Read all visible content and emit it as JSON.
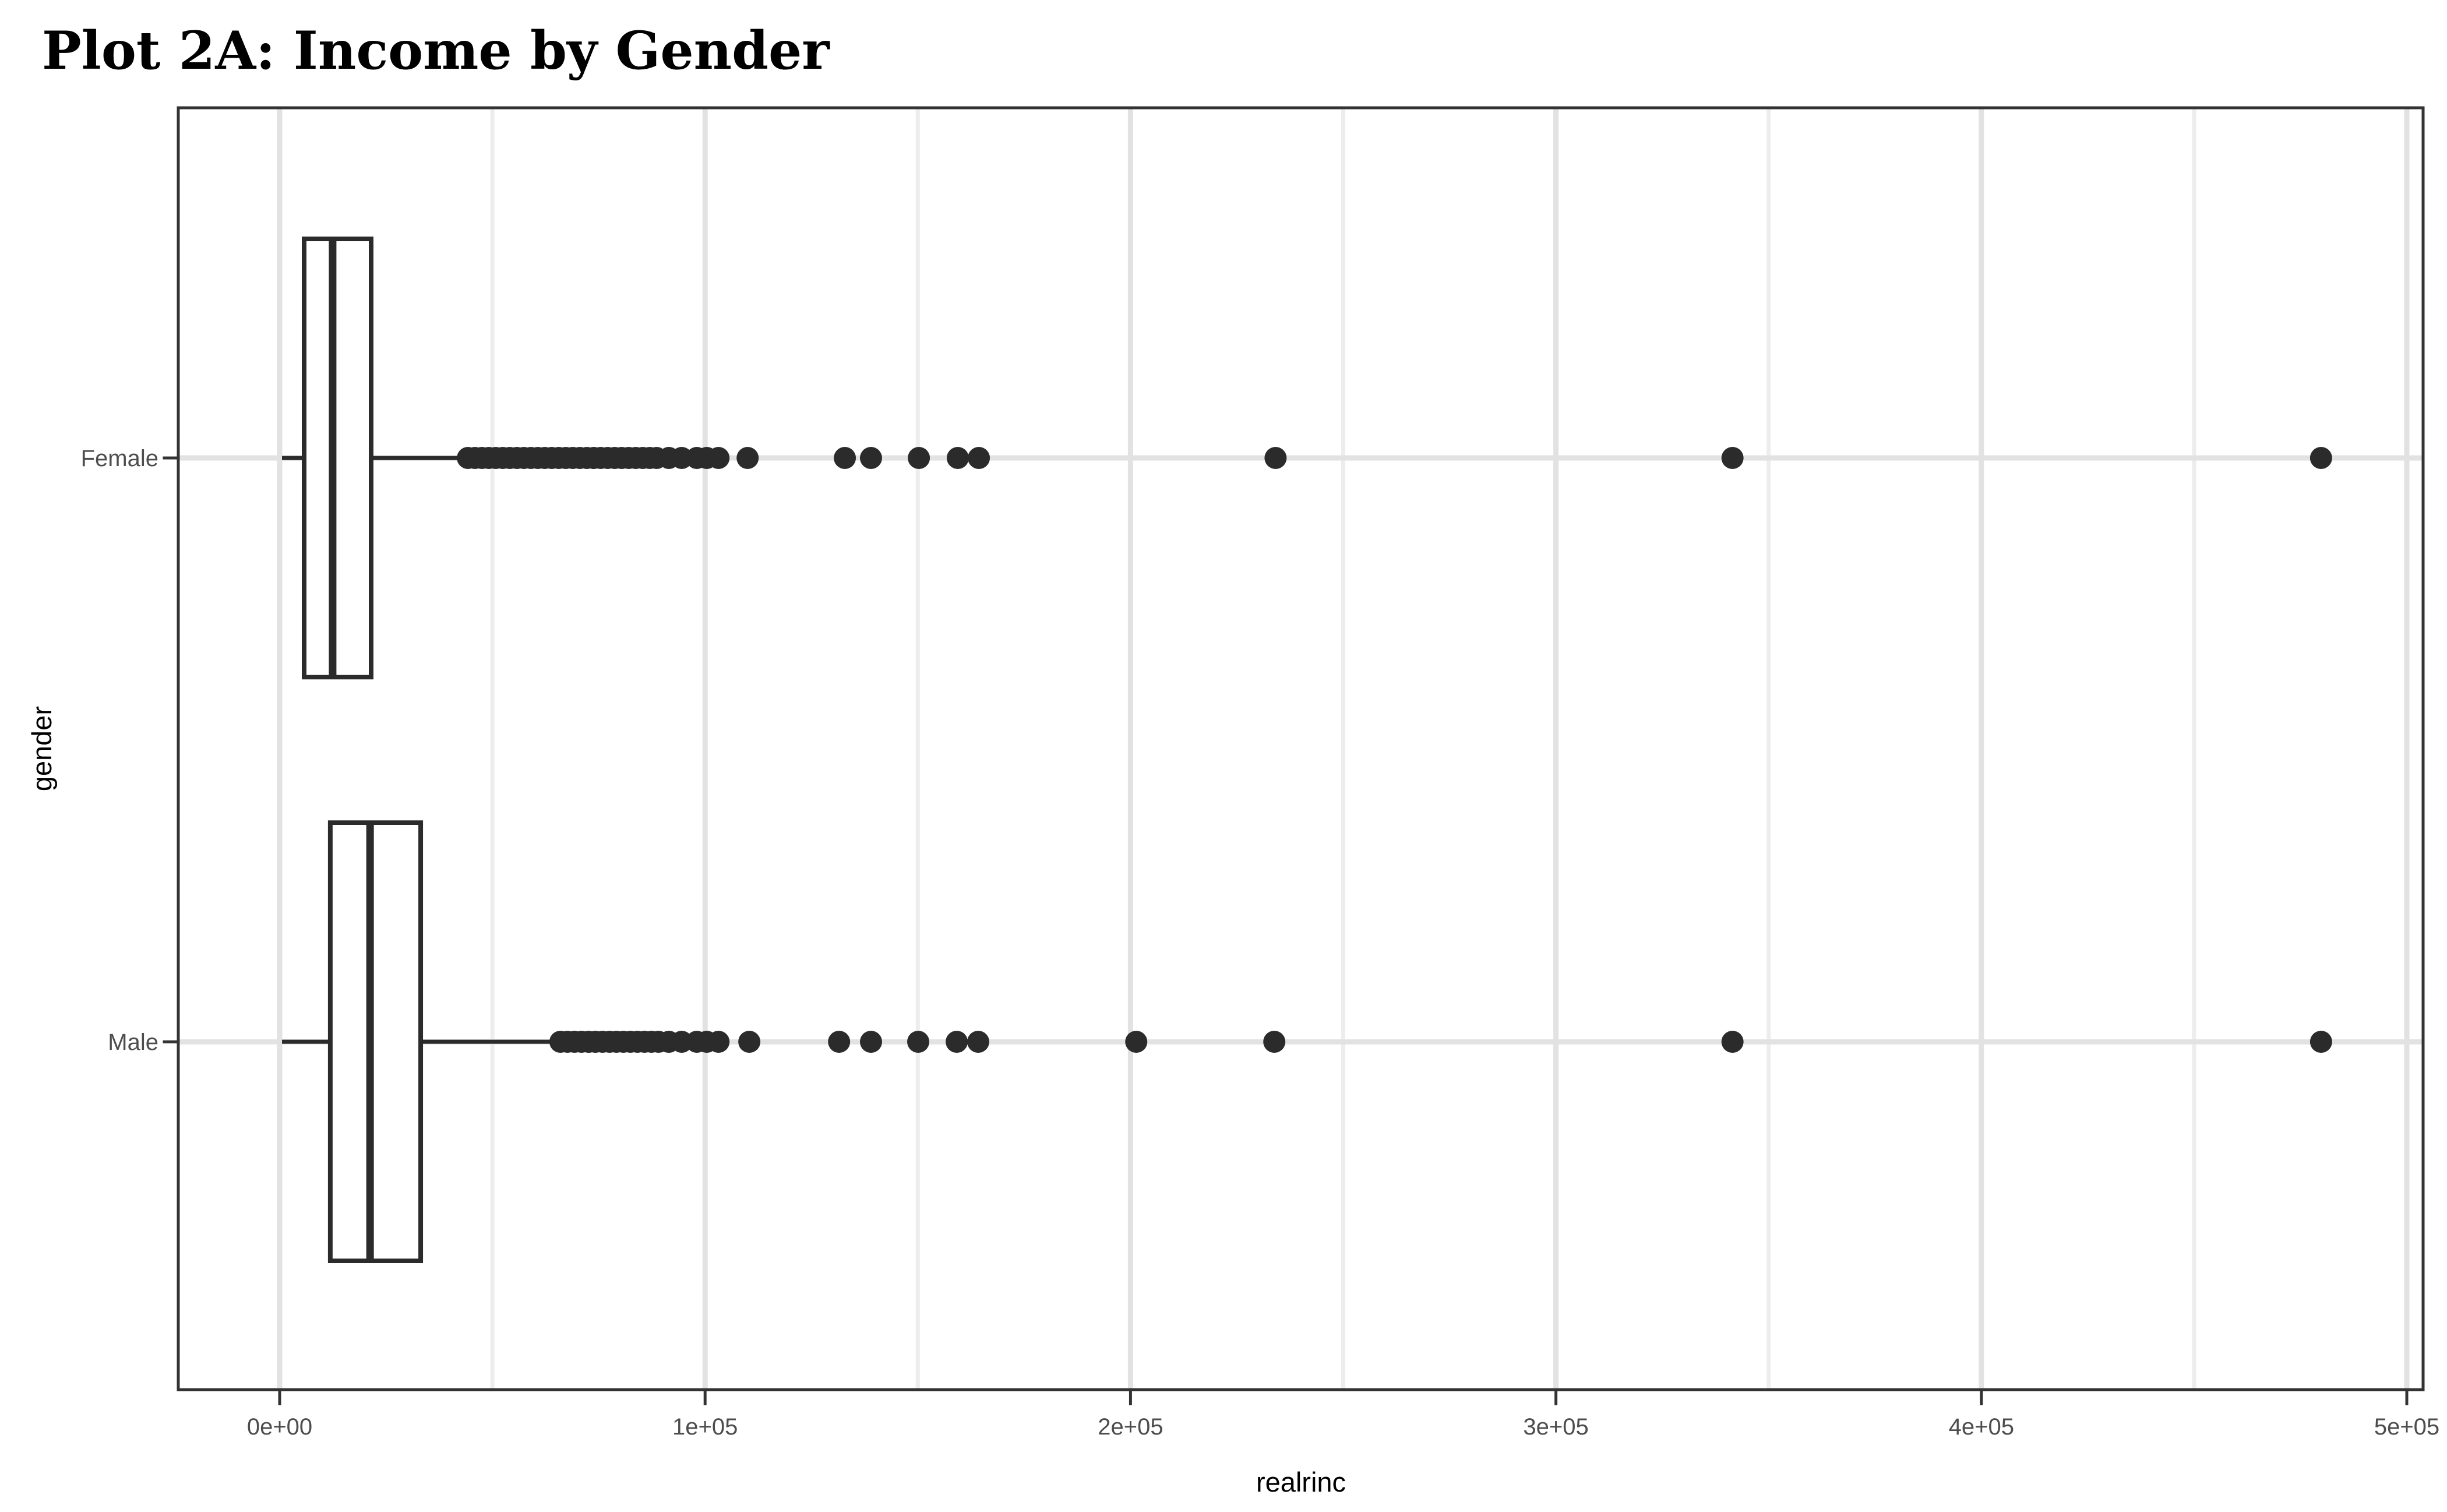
{
  "figure": {
    "title": "Plot 2A: Income by Gender",
    "x_axis_label": "realrinc",
    "y_axis_label": "gender",
    "category_labels": [
      "Female",
      "Male"
    ]
  },
  "chart_data": {
    "type": "boxplot",
    "orientation": "horizontal",
    "title": "Plot 2A: Income by Gender",
    "xlabel": "realrinc",
    "ylabel": "gender",
    "categories": [
      "Female",
      "Male"
    ],
    "x_ticks": [
      {
        "value": 0,
        "label": "0e+00"
      },
      {
        "value": 100000,
        "label": "1e+05"
      },
      {
        "value": 200000,
        "label": "2e+05"
      },
      {
        "value": 300000,
        "label": "3e+05"
      },
      {
        "value": 400000,
        "label": "4e+05"
      },
      {
        "value": 500000,
        "label": "5e+05"
      }
    ],
    "x_minor_ticks": [
      50000,
      150000,
      250000,
      350000,
      450000
    ],
    "x_axis_range": [
      -24000,
      504000
    ],
    "grid": {
      "vertical_major": true,
      "vertical_minor": true,
      "horizontal_major": true
    },
    "legend": "none",
    "series": [
      {
        "category": "Female",
        "whisker_low": 550,
        "q1": 5750,
        "median": 12450,
        "q3": 21500,
        "whisker_high": 42300,
        "outliers": [
          44250,
          45900,
          47550,
          49150,
          50800,
          52450,
          54100,
          55750,
          57400,
          59050,
          60700,
          62300,
          63950,
          65600,
          67250,
          68900,
          70550,
          72200,
          73850,
          75450,
          77100,
          78750,
          80400,
          82050,
          83700,
          85350,
          87000,
          88600,
          91500,
          94500,
          98050,
          100400,
          103150,
          110000,
          132850,
          139000,
          150250,
          159400,
          164350,
          234100,
          341500,
          479850
        ]
      },
      {
        "category": "Male",
        "whisker_low": 550,
        "q1": 11900,
        "median": 21250,
        "q3": 33150,
        "whisker_high": 63950,
        "outliers": [
          66000,
          67650,
          69300,
          70950,
          72600,
          74250,
          75900,
          77550,
          79150,
          80800,
          82450,
          84100,
          85750,
          87400,
          89050,
          91500,
          94500,
          98050,
          100400,
          103150,
          110400,
          131500,
          139000,
          150100,
          159150,
          164200,
          201350,
          233800,
          341500,
          479850
        ]
      }
    ]
  },
  "style": {
    "background": "#ffffff",
    "geom_color": "#2b2b2b",
    "panel_border_color": "#333333",
    "grid_major_color": "#e2e2e2",
    "grid_minor_color": "#ededed",
    "axis_text_color": "#4d4d4d",
    "axis_title_color": "#000000",
    "title_color": "#000000"
  }
}
